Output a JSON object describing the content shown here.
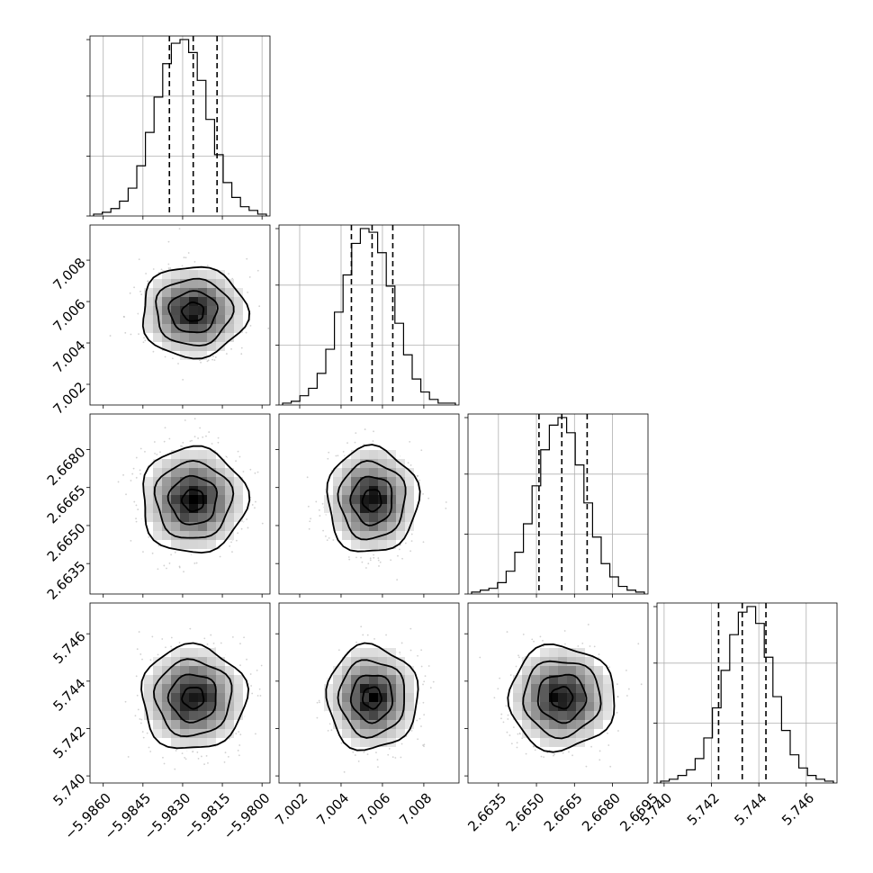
{
  "chart_data": {
    "type": "corner",
    "parameters": [
      {
        "median": -5.9826,
        "q16": -5.9835,
        "q84": -5.9817,
        "range": [
          -5.9865,
          -5.9797
        ],
        "ticks": [
          -5.986,
          -5.9845,
          -5.983,
          -5.9815,
          -5.98
        ],
        "tick_labels": [
          "−5.9860",
          "−5.9845",
          "−5.9830",
          "−5.9815",
          "−5.9800"
        ],
        "histogram_counts": [
          1,
          2,
          4,
          8,
          15,
          27,
          45,
          64,
          82,
          93,
          95,
          88,
          73,
          52,
          33,
          18,
          10,
          5,
          3,
          1
        ]
      },
      {
        "median": 7.0055,
        "q16": 7.0045,
        "q84": 7.0065,
        "range": [
          7.001,
          7.0097
        ],
        "ticks": [
          7.002,
          7.004,
          7.006,
          7.008
        ],
        "tick_labels": [
          "7.002",
          "7.004",
          "7.006",
          "7.008"
        ],
        "histogram_counts": [
          1,
          2,
          5,
          9,
          17,
          30,
          50,
          70,
          87,
          95,
          93,
          82,
          64,
          44,
          27,
          14,
          7,
          3,
          1,
          1
        ]
      },
      {
        "median": 2.666,
        "q16": 2.6651,
        "q84": 2.667,
        "range": [
          2.6623,
          2.6694
        ],
        "ticks": [
          2.6635,
          2.665,
          2.6665,
          2.668,
          2.6695
        ],
        "tick_labels": [
          "2.6635",
          "2.6650",
          "2.6665",
          "2.6680",
          "2.6695"
        ],
        "histogram_counts": [
          1,
          2,
          3,
          6,
          12,
          22,
          37,
          57,
          76,
          89,
          93,
          85,
          68,
          48,
          30,
          16,
          9,
          4,
          2,
          1
        ]
      },
      {
        "median": 5.7433,
        "q16": 5.7423,
        "q84": 5.7443,
        "range": [
          5.7397,
          5.7473
        ],
        "ticks": [
          5.74,
          5.742,
          5.744,
          5.746
        ],
        "tick_labels": [
          "5.740",
          "5.742",
          "5.744",
          "5.746"
        ],
        "histogram_counts": [
          1,
          2,
          4,
          7,
          13,
          24,
          40,
          60,
          79,
          91,
          94,
          85,
          67,
          46,
          28,
          15,
          8,
          4,
          2,
          1
        ]
      }
    ],
    "grid": true,
    "xlabel": "",
    "ylabel": "",
    "title": ""
  }
}
